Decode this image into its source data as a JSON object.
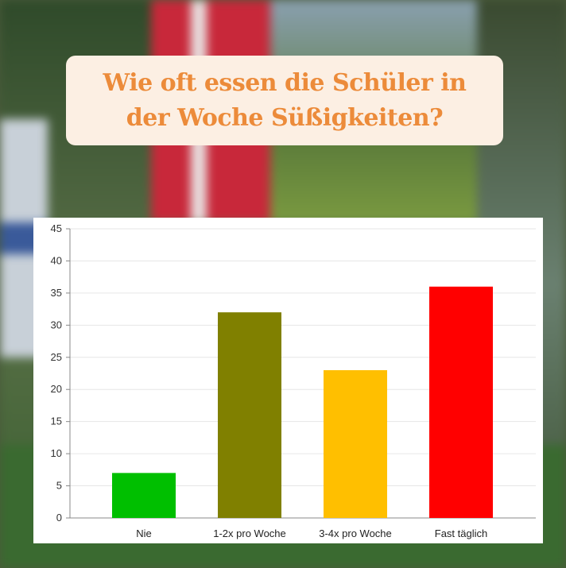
{
  "title": "Wie oft essen die Schüler in der Woche Süßigkeiten?",
  "colors": {
    "title_text": "#ec8b3a",
    "title_bg": "#fcefe3"
  },
  "chart_data": {
    "type": "bar",
    "title": "",
    "xlabel": "",
    "ylabel": "",
    "categories": [
      "Nie",
      "1-2x pro Woche",
      "3-4x pro Woche",
      "Fast täglich"
    ],
    "values": [
      7,
      32,
      23,
      36
    ],
    "bar_colors": [
      "#00bf00",
      "#808000",
      "#ffbf00",
      "#ff0000"
    ],
    "ylim": [
      0,
      45
    ],
    "yticks": [
      "0",
      "5",
      "10",
      "15",
      "20",
      "25",
      "30",
      "35",
      "40",
      "45"
    ],
    "grid": true,
    "legend": "none"
  }
}
